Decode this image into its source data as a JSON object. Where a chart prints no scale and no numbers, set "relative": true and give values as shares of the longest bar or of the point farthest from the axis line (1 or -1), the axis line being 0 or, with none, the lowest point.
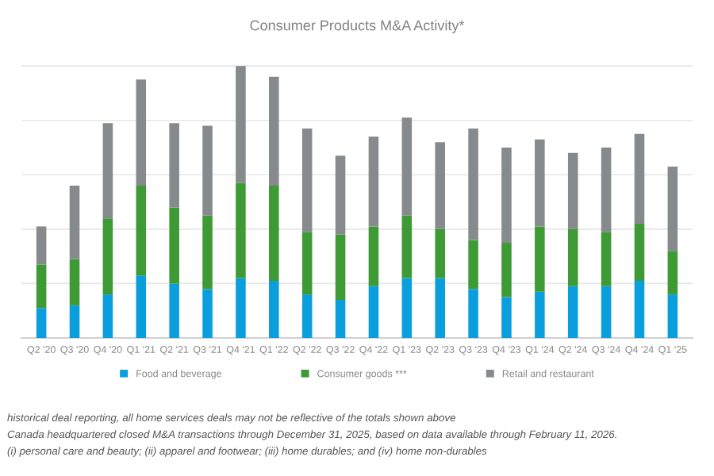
{
  "chart_data": {
    "type": "bar",
    "title": "Consumer Products M&A Activity*",
    "relative": true,
    "stacked": true,
    "grid": "y",
    "legend": "bottom",
    "categories": [
      "Q2 '20",
      "Q3 '20",
      "Q4 '20",
      "Q1 '21",
      "Q2 '21",
      "Q3 '21",
      "Q4 '21",
      "Q1 '22",
      "Q2 '22",
      "Q3 '22",
      "Q4 '22",
      "Q1 '23",
      "Q2 '23",
      "Q3 '23",
      "Q4 '23",
      "Q1 '24",
      "Q2 '24",
      "Q3 '24",
      "Q4 '24",
      "Q1 '25"
    ],
    "series": [
      {
        "name": "Food and beverage",
        "color": "#0a9fdc",
        "values": [
          0.11,
          0.12,
          0.16,
          0.23,
          0.2,
          0.18,
          0.22,
          0.21,
          0.16,
          0.14,
          0.19,
          0.22,
          0.22,
          0.18,
          0.15,
          0.17,
          0.19,
          0.19,
          0.21,
          0.16
        ]
      },
      {
        "name": "Consumer goods ***",
        "color": "#3e9a35",
        "values": [
          0.16,
          0.17,
          0.28,
          0.33,
          0.28,
          0.27,
          0.35,
          0.35,
          0.23,
          0.24,
          0.22,
          0.23,
          0.18,
          0.18,
          0.2,
          0.24,
          0.21,
          0.2,
          0.21,
          0.16
        ]
      },
      {
        "name": "Retail and restaurant",
        "color": "#878a8d",
        "values": [
          0.14,
          0.27,
          0.35,
          0.39,
          0.31,
          0.33,
          0.43,
          0.4,
          0.38,
          0.29,
          0.33,
          0.36,
          0.32,
          0.41,
          0.35,
          0.32,
          0.28,
          0.31,
          0.33,
          0.31
        ]
      }
    ],
    "annotations": [
      "historical deal reporting, all home services deals may not be reflective of the totals shown above",
      "Canada headquartered closed M&A transactions through December 31, 2025, based on data available through February 11, 2026.",
      "(i) personal care and beauty; (ii) apparel and footwear; (iii) home durables; and (iv) home non-durables"
    ]
  }
}
